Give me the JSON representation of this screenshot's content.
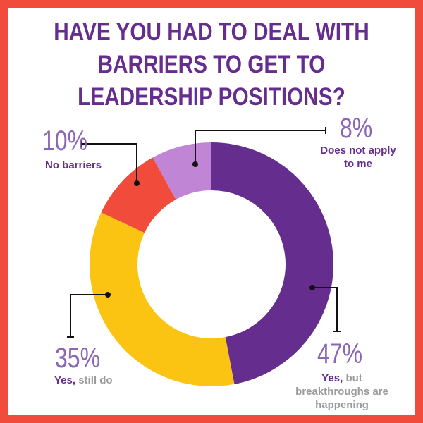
{
  "chart_data": {
    "type": "pie",
    "donut": true,
    "title": "HAVE YOU HAD TO DEAL WITH BARRIERS TO GET TO LEADERSHIP POSITIONS?",
    "slices": [
      {
        "label": "Yes, but breakthroughs are happening",
        "lead": "Yes,",
        "rest": "but breakthroughs are happening",
        "value": 47,
        "pct": "47%",
        "color": "#652d8e"
      },
      {
        "label": "Yes, still do",
        "lead": "Yes,",
        "rest": "still do",
        "value": 35,
        "pct": "35%",
        "color": "#fbc412"
      },
      {
        "label": "No barriers",
        "value": 10,
        "pct": "10%",
        "color": "#f04b3b"
      },
      {
        "label": "Does not apply to me",
        "value": 8,
        "pct": "8%",
        "color": "#c185d6"
      }
    ]
  },
  "colors": {
    "border": "#f04b3b",
    "title": "#652d8e",
    "percent": "#8a66b4",
    "caption": "#9b9b9b"
  }
}
